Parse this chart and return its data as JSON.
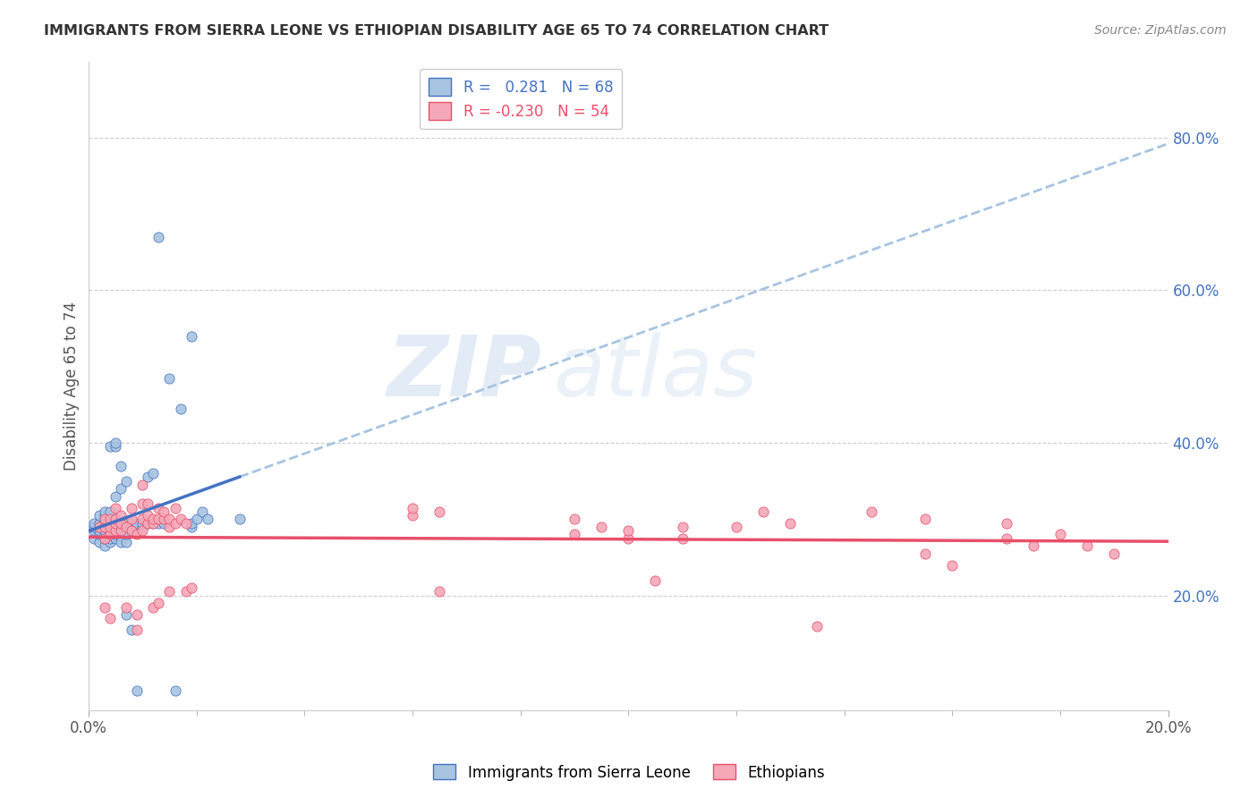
{
  "title": "IMMIGRANTS FROM SIERRA LEONE VS ETHIOPIAN DISABILITY AGE 65 TO 74 CORRELATION CHART",
  "source": "Source: ZipAtlas.com",
  "ylabel": "Disability Age 65 to 74",
  "legend_label_blue": "Immigrants from Sierra Leone",
  "legend_label_pink": "Ethiopians",
  "yaxis_ticks": [
    "20.0%",
    "40.0%",
    "60.0%",
    "80.0%"
  ],
  "yaxis_tick_values": [
    0.2,
    0.4,
    0.6,
    0.8
  ],
  "xlim": [
    0.0,
    0.2
  ],
  "ylim": [
    0.05,
    0.9
  ],
  "blue_scatter": [
    [
      0.001,
      0.275
    ],
    [
      0.001,
      0.285
    ],
    [
      0.001,
      0.29
    ],
    [
      0.001,
      0.295
    ],
    [
      0.002,
      0.27
    ],
    [
      0.002,
      0.28
    ],
    [
      0.002,
      0.285
    ],
    [
      0.002,
      0.29
    ],
    [
      0.002,
      0.295
    ],
    [
      0.002,
      0.305
    ],
    [
      0.003,
      0.265
    ],
    [
      0.003,
      0.275
    ],
    [
      0.003,
      0.28
    ],
    [
      0.003,
      0.285
    ],
    [
      0.003,
      0.29
    ],
    [
      0.003,
      0.295
    ],
    [
      0.003,
      0.3
    ],
    [
      0.003,
      0.305
    ],
    [
      0.003,
      0.31
    ],
    [
      0.004,
      0.27
    ],
    [
      0.004,
      0.275
    ],
    [
      0.004,
      0.28
    ],
    [
      0.004,
      0.285
    ],
    [
      0.004,
      0.29
    ],
    [
      0.004,
      0.295
    ],
    [
      0.004,
      0.31
    ],
    [
      0.004,
      0.395
    ],
    [
      0.005,
      0.275
    ],
    [
      0.005,
      0.28
    ],
    [
      0.005,
      0.29
    ],
    [
      0.005,
      0.295
    ],
    [
      0.005,
      0.33
    ],
    [
      0.005,
      0.395
    ],
    [
      0.005,
      0.4
    ],
    [
      0.006,
      0.27
    ],
    [
      0.006,
      0.285
    ],
    [
      0.006,
      0.295
    ],
    [
      0.006,
      0.34
    ],
    [
      0.006,
      0.37
    ],
    [
      0.007,
      0.175
    ],
    [
      0.007,
      0.27
    ],
    [
      0.007,
      0.28
    ],
    [
      0.007,
      0.295
    ],
    [
      0.007,
      0.35
    ],
    [
      0.008,
      0.155
    ],
    [
      0.008,
      0.285
    ],
    [
      0.008,
      0.295
    ],
    [
      0.009,
      0.295
    ],
    [
      0.009,
      0.075
    ],
    [
      0.01,
      0.29
    ],
    [
      0.01,
      0.295
    ],
    [
      0.011,
      0.295
    ],
    [
      0.011,
      0.355
    ],
    [
      0.012,
      0.295
    ],
    [
      0.012,
      0.36
    ],
    [
      0.013,
      0.295
    ],
    [
      0.013,
      0.67
    ],
    [
      0.014,
      0.295
    ],
    [
      0.015,
      0.485
    ],
    [
      0.016,
      0.075
    ],
    [
      0.017,
      0.445
    ],
    [
      0.019,
      0.29
    ],
    [
      0.019,
      0.295
    ],
    [
      0.019,
      0.54
    ],
    [
      0.02,
      0.3
    ],
    [
      0.021,
      0.31
    ],
    [
      0.022,
      0.3
    ],
    [
      0.028,
      0.3
    ]
  ],
  "pink_scatter": [
    [
      0.002,
      0.29
    ],
    [
      0.003,
      0.275
    ],
    [
      0.003,
      0.29
    ],
    [
      0.003,
      0.3
    ],
    [
      0.003,
      0.185
    ],
    [
      0.004,
      0.28
    ],
    [
      0.004,
      0.29
    ],
    [
      0.004,
      0.3
    ],
    [
      0.004,
      0.17
    ],
    [
      0.005,
      0.285
    ],
    [
      0.005,
      0.295
    ],
    [
      0.005,
      0.315
    ],
    [
      0.005,
      0.3
    ],
    [
      0.006,
      0.285
    ],
    [
      0.006,
      0.295
    ],
    [
      0.006,
      0.305
    ],
    [
      0.007,
      0.29
    ],
    [
      0.007,
      0.185
    ],
    [
      0.008,
      0.285
    ],
    [
      0.008,
      0.3
    ],
    [
      0.008,
      0.315
    ],
    [
      0.009,
      0.28
    ],
    [
      0.009,
      0.175
    ],
    [
      0.009,
      0.155
    ],
    [
      0.01,
      0.285
    ],
    [
      0.01,
      0.3
    ],
    [
      0.01,
      0.32
    ],
    [
      0.01,
      0.345
    ],
    [
      0.011,
      0.295
    ],
    [
      0.011,
      0.305
    ],
    [
      0.011,
      0.32
    ],
    [
      0.012,
      0.185
    ],
    [
      0.012,
      0.295
    ],
    [
      0.012,
      0.3
    ],
    [
      0.013,
      0.19
    ],
    [
      0.013,
      0.3
    ],
    [
      0.013,
      0.315
    ],
    [
      0.014,
      0.3
    ],
    [
      0.014,
      0.31
    ],
    [
      0.015,
      0.29
    ],
    [
      0.015,
      0.3
    ],
    [
      0.015,
      0.205
    ],
    [
      0.016,
      0.295
    ],
    [
      0.016,
      0.315
    ],
    [
      0.017,
      0.3
    ],
    [
      0.018,
      0.205
    ],
    [
      0.018,
      0.295
    ],
    [
      0.019,
      0.21
    ],
    [
      0.06,
      0.305
    ],
    [
      0.06,
      0.315
    ],
    [
      0.065,
      0.31
    ],
    [
      0.065,
      0.205
    ],
    [
      0.09,
      0.28
    ],
    [
      0.09,
      0.3
    ],
    [
      0.095,
      0.29
    ],
    [
      0.1,
      0.275
    ],
    [
      0.1,
      0.285
    ],
    [
      0.105,
      0.22
    ],
    [
      0.11,
      0.29
    ],
    [
      0.11,
      0.275
    ],
    [
      0.12,
      0.29
    ],
    [
      0.125,
      0.31
    ],
    [
      0.13,
      0.295
    ],
    [
      0.135,
      0.16
    ],
    [
      0.145,
      0.31
    ],
    [
      0.155,
      0.3
    ],
    [
      0.155,
      0.255
    ],
    [
      0.16,
      0.24
    ],
    [
      0.17,
      0.275
    ],
    [
      0.17,
      0.295
    ],
    [
      0.175,
      0.265
    ],
    [
      0.18,
      0.28
    ],
    [
      0.185,
      0.265
    ],
    [
      0.19,
      0.255
    ]
  ],
  "blue_color": "#a8c4e0",
  "pink_color": "#f4a8b8",
  "blue_line_color": "#4472c4",
  "pink_line_color": "#e84f6b",
  "dashed_line_color": "#a8c4e0",
  "watermark_zip": "ZIP",
  "watermark_atlas": "atlas",
  "background_color": "#ffffff",
  "grid_color": "#cccccc"
}
